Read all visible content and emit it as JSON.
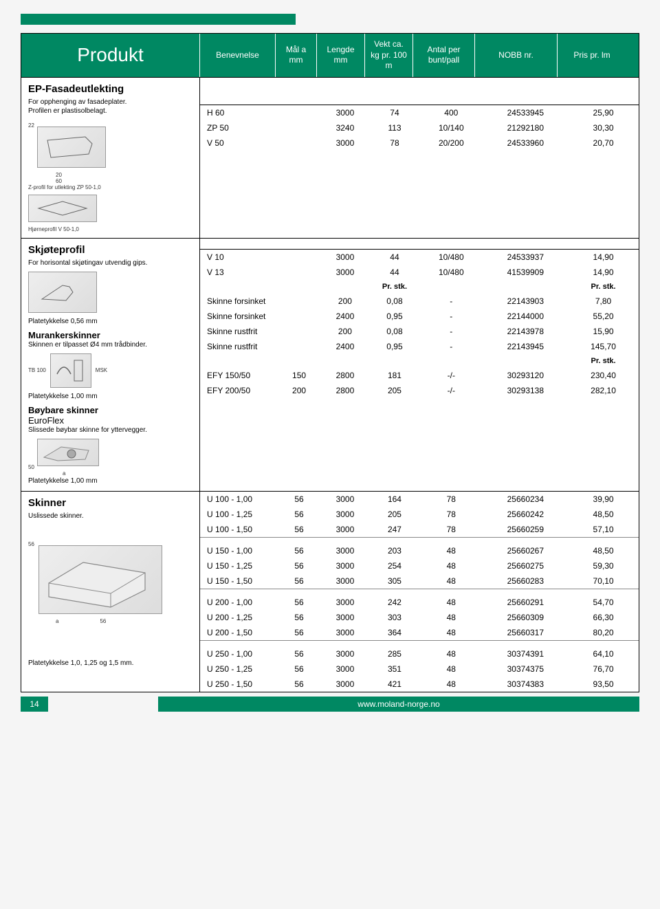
{
  "header": {
    "produkt": "Produkt",
    "benevnelse": "Benevnelse",
    "mal": "Mål a mm",
    "lengde": "Lengde mm",
    "vekt": "Vekt ca. kg pr. 100 m",
    "antal": "Antal per bunt/pall",
    "nobb": "NOBB nr.",
    "pris": "Pris pr. lm"
  },
  "ep": {
    "title": "EP-Fasadeutlekting",
    "note1": "For opphenging av fasadeplater.",
    "note2": "Profilen er plastisolbelagt.",
    "diag_a": "Z-profil for utlekting ZP 50-1,0",
    "diag_b": "Hjørneprofil V 50-1,0",
    "dim_22": "22",
    "dim_20": "20",
    "dim_60": "60",
    "rows": [
      {
        "ben": "H 60",
        "mal": "",
        "len": "3000",
        "vekt": "74",
        "ant": "400",
        "nobb": "24533945",
        "pris": "25,90"
      },
      {
        "ben": "ZP 50",
        "mal": "",
        "len": "3240",
        "vekt": "113",
        "ant": "10/140",
        "nobb": "21292180",
        "pris": "30,30"
      },
      {
        "ben": "V 50",
        "mal": "",
        "len": "3000",
        "vekt": "78",
        "ant": "20/200",
        "nobb": "24533960",
        "pris": "20,70"
      }
    ]
  },
  "skjote": {
    "title": "Skjøteprofil",
    "note": "For horisontal skjøtingav utvendig gips.",
    "plate_note": "Platetykkelse 0,56 mm",
    "rows": [
      {
        "ben": "V 10",
        "mal": "",
        "len": "3000",
        "vekt": "44",
        "ant": "10/480",
        "nobb": "24533937",
        "pris": "14,90"
      },
      {
        "ben": "V 13",
        "mal": "",
        "len": "3000",
        "vekt": "44",
        "ant": "10/480",
        "nobb": "41539909",
        "pris": "14,90"
      }
    ]
  },
  "murank": {
    "title": "Murankerskinner",
    "note": "Skinnen er tilpasset Ø4 mm trådbinder.",
    "diag_a": "MSK",
    "diag_b": "TB 100",
    "plate_note": "Platetykkelse 1,00 mm",
    "hdr_vekt": "Pr. stk.",
    "hdr_pris": "Pr. stk.",
    "rows": [
      {
        "ben": "Skinne forsinket",
        "mal": "",
        "len": "200",
        "vekt": "0,08",
        "ant": "-",
        "nobb": "22143903",
        "pris": "7,80"
      },
      {
        "ben": "Skinne forsinket",
        "mal": "",
        "len": "2400",
        "vekt": "0,95",
        "ant": "-",
        "nobb": "22144000",
        "pris": "55,20"
      },
      {
        "ben": "Skinne rustfrit",
        "mal": "",
        "len": "200",
        "vekt": "0,08",
        "ant": "-",
        "nobb": "22143978",
        "pris": "15,90"
      },
      {
        "ben": "Skinne rustfrit",
        "mal": "",
        "len": "2400",
        "vekt": "0,95",
        "ant": "-",
        "nobb": "22143945",
        "pris": "145,70"
      }
    ]
  },
  "boybare": {
    "title": "Bøybare skinner",
    "sub": "EuroFlex",
    "note": "Slissede bøybar skinne for yttervegger.",
    "dim_50": "50",
    "dim_a": "a",
    "plate_note": "Platetykkelse 1,00 mm",
    "hdr_pris": "Pr. stk.",
    "rows": [
      {
        "ben": "EFY 150/50",
        "mal": "150",
        "len": "2800",
        "vekt": "181",
        "ant": "-/-",
        "nobb": "30293120",
        "pris": "230,40"
      },
      {
        "ben": "EFY 200/50",
        "mal": "200",
        "len": "2800",
        "vekt": "205",
        "ant": "-/-",
        "nobb": "30293138",
        "pris": "282,10"
      }
    ]
  },
  "skinner": {
    "title": "Skinner",
    "note": "Uslissede skinner.",
    "dim_56a": "56",
    "dim_56b": "56",
    "dim_a": "a",
    "plate_note": "Platetykkelse 1,0, 1,25 og 1,5 mm.",
    "group1": [
      {
        "ben": "U 100 - 1,00",
        "mal": "56",
        "len": "3000",
        "vekt": "164",
        "ant": "78",
        "nobb": "25660234",
        "pris": "39,90"
      },
      {
        "ben": "U 100 - 1,25",
        "mal": "56",
        "len": "3000",
        "vekt": "205",
        "ant": "78",
        "nobb": "25660242",
        "pris": "48,50"
      },
      {
        "ben": "U 100 - 1,50",
        "mal": "56",
        "len": "3000",
        "vekt": "247",
        "ant": "78",
        "nobb": "25660259",
        "pris": "57,10"
      }
    ],
    "group2": [
      {
        "ben": "U 150 - 1,00",
        "mal": "56",
        "len": "3000",
        "vekt": "203",
        "ant": "48",
        "nobb": "25660267",
        "pris": "48,50"
      },
      {
        "ben": "U 150 - 1,25",
        "mal": "56",
        "len": "3000",
        "vekt": "254",
        "ant": "48",
        "nobb": "25660275",
        "pris": "59,30"
      },
      {
        "ben": "U 150 - 1,50",
        "mal": "56",
        "len": "3000",
        "vekt": "305",
        "ant": "48",
        "nobb": "25660283",
        "pris": "70,10"
      }
    ],
    "group3": [
      {
        "ben": "U 200 - 1,00",
        "mal": "56",
        "len": "3000",
        "vekt": "242",
        "ant": "48",
        "nobb": "25660291",
        "pris": "54,70"
      },
      {
        "ben": "U 200 - 1,25",
        "mal": "56",
        "len": "3000",
        "vekt": "303",
        "ant": "48",
        "nobb": "25660309",
        "pris": "66,30"
      },
      {
        "ben": "U 200 - 1,50",
        "mal": "56",
        "len": "3000",
        "vekt": "364",
        "ant": "48",
        "nobb": "25660317",
        "pris": "80,20"
      }
    ],
    "group4": [
      {
        "ben": "U 250 - 1,00",
        "mal": "56",
        "len": "3000",
        "vekt": "285",
        "ant": "48",
        "nobb": "30374391",
        "pris": "64,10"
      },
      {
        "ben": "U 250 - 1,25",
        "mal": "56",
        "len": "3000",
        "vekt": "351",
        "ant": "48",
        "nobb": "30374375",
        "pris": "76,70"
      },
      {
        "ben": "U 250 - 1,50",
        "mal": "56",
        "len": "3000",
        "vekt": "421",
        "ant": "48",
        "nobb": "30374383",
        "pris": "93,50"
      }
    ]
  },
  "footer": {
    "page": "14",
    "url": "www.moland-norge.no"
  },
  "colors": {
    "accent": "#008862",
    "text": "#000000",
    "bg": "#ffffff"
  }
}
